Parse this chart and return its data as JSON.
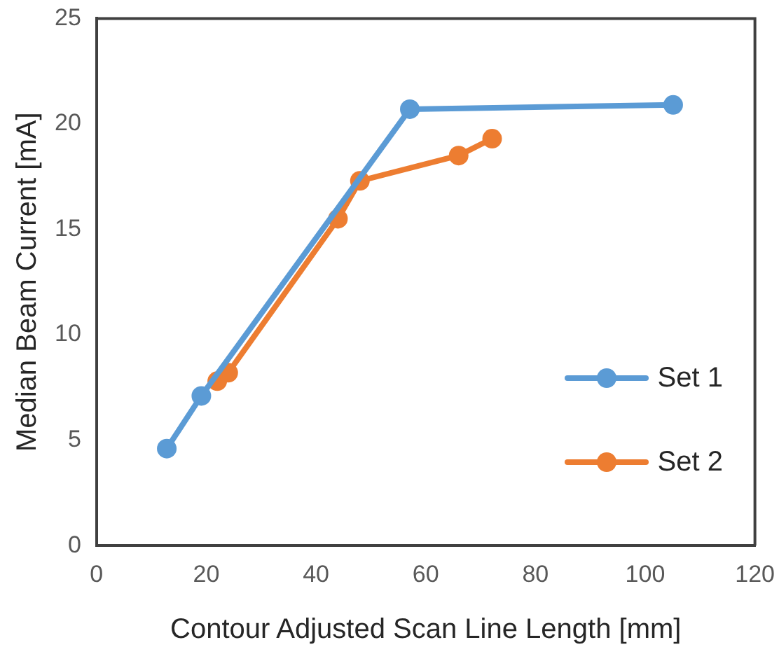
{
  "chart_data": {
    "type": "line",
    "xlabel": "Contour Adjusted Scan Line Length [mm]",
    "ylabel": "Median Beam Current [mA]",
    "series": [
      {
        "name": "Set 1",
        "color": "#5b9bd5",
        "x": [
          12.8,
          19.1,
          57.1,
          105.1
        ],
        "values": [
          4.6,
          7.1,
          20.7,
          20.9
        ]
      },
      {
        "name": "Set 2",
        "color": "#ed7d31",
        "x": [
          22.0,
          24.0,
          44.0,
          48.0,
          66.0,
          72.1
        ],
        "values": [
          7.8,
          8.2,
          15.5,
          17.3,
          18.5,
          19.3
        ]
      }
    ],
    "xlim": [
      0,
      120
    ],
    "xticks": [
      0,
      20,
      40,
      60,
      80,
      100,
      120
    ],
    "ylim": [
      0,
      25
    ],
    "yticks": [
      0,
      5,
      10,
      15,
      20,
      25
    ],
    "grid": false,
    "legend": "right",
    "marker": "circle",
    "line_style": "solid"
  }
}
